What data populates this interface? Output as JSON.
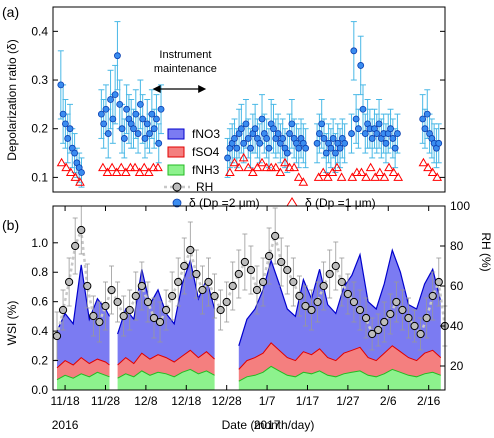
{
  "colors": {
    "fNO3": "#7b7bf2",
    "fNO3_edge": "#0000cc",
    "fSO4": "#f47f7f",
    "fSO4_edge": "#e00000",
    "fNH3": "#8df28d",
    "fNH3_edge": "#22bb22",
    "rh_marker": "#bdbdbd",
    "rh_line": "#c8c8c8",
    "d2": "#3a8cf0",
    "d2_err": "#49b8e6",
    "d1": "#ff0000"
  },
  "chart_data": [
    {
      "panel_label": "(a)",
      "type": "scatter",
      "ylabel": "Depolarization ratio (δ)",
      "ylim": [
        0.07,
        0.45
      ],
      "yticks": [
        0.1,
        0.2,
        0.3,
        0.4
      ],
      "ytick_labels": [
        "0.1",
        "0.2",
        "0.3",
        "0.4"
      ],
      "annotation": "Instrument\nmaintenance",
      "annotation_span": [
        12.5,
        19.5
      ],
      "series": [
        {
          "name": "δ (Dp =2 μm)",
          "marker": "circle",
          "x": [
            0.5,
            0.8,
            1.1,
            1.4,
            1.7,
            2.0,
            2.3,
            2.6,
            2.9,
            3.2,
            5.8,
            6.1,
            6.4,
            6.7,
            7.0,
            7.3,
            7.6,
            7.9,
            8.2,
            8.5,
            8.8,
            9.1,
            9.4,
            9.7,
            10.0,
            10.3,
            10.6,
            10.9,
            11.2,
            11.5,
            11.8,
            12.1,
            12.4,
            12.7,
            13.0,
            13.3,
            13.6,
            22.3,
            22.6,
            22.9,
            23.2,
            23.5,
            23.8,
            24.1,
            24.4,
            24.7,
            25.0,
            25.3,
            25.6,
            25.9,
            26.2,
            26.5,
            26.8,
            27.1,
            27.4,
            27.7,
            28.0,
            28.3,
            28.6,
            28.9,
            29.2,
            29.5,
            29.8,
            30.1,
            30.4,
            30.7,
            31.0,
            31.3,
            31.6,
            31.9,
            32.2,
            32.5,
            34.0,
            34.3,
            34.6,
            34.9,
            35.2,
            35.5,
            35.8,
            36.1,
            36.4,
            36.7,
            37.0,
            37.3,
            37.6,
            38.5,
            38.8,
            39.1,
            39.4,
            39.7,
            40.0,
            40.3,
            40.6,
            40.9,
            41.2,
            41.5,
            41.8,
            42.1,
            42.4,
            42.7,
            43.0,
            43.3,
            43.6,
            43.9,
            44.2,
            44.5,
            47.8,
            48.1,
            48.4,
            48.7,
            49.0,
            49.3,
            49.6,
            49.9
          ],
          "y": [
            0.29,
            0.23,
            0.21,
            0.18,
            0.2,
            0.16,
            0.15,
            0.13,
            0.12,
            0.11,
            0.23,
            0.21,
            0.24,
            0.19,
            0.26,
            0.22,
            0.27,
            0.35,
            0.25,
            0.2,
            0.18,
            0.24,
            0.22,
            0.21,
            0.2,
            0.23,
            0.19,
            0.25,
            0.22,
            0.18,
            0.21,
            0.19,
            0.23,
            0.2,
            0.22,
            0.17,
            0.24,
            0.14,
            0.16,
            0.17,
            0.18,
            0.16,
            0.19,
            0.2,
            0.17,
            0.21,
            0.18,
            0.16,
            0.19,
            0.2,
            0.18,
            0.17,
            0.22,
            0.19,
            0.18,
            0.16,
            0.21,
            0.2,
            0.18,
            0.19,
            0.17,
            0.18,
            0.16,
            0.15,
            0.19,
            0.21,
            0.18,
            0.17,
            0.16,
            0.18,
            0.17,
            0.16,
            0.17,
            0.19,
            0.21,
            0.18,
            0.15,
            0.17,
            0.16,
            0.18,
            0.15,
            0.17,
            0.16,
            0.18,
            0.17,
            0.19,
            0.36,
            0.22,
            0.2,
            0.33,
            0.24,
            0.19,
            0.21,
            0.2,
            0.18,
            0.2,
            0.19,
            0.21,
            0.18,
            0.19,
            0.17,
            0.19,
            0.2,
            0.18,
            0.16,
            0.19,
            0.22,
            0.2,
            0.23,
            0.19,
            0.18,
            0.17,
            0.16,
            0.17
          ],
          "yerr": [
            0.07,
            0.06,
            0.05,
            0.05,
            0.05,
            0.04,
            0.04,
            0.03,
            0.03,
            0.03,
            0.05,
            0.05,
            0.05,
            0.05,
            0.06,
            0.05,
            0.06,
            0.07,
            0.05,
            0.05,
            0.04,
            0.05,
            0.05,
            0.05,
            0.04,
            0.05,
            0.04,
            0.05,
            0.05,
            0.04,
            0.05,
            0.04,
            0.05,
            0.04,
            0.05,
            0.04,
            0.05,
            0.04,
            0.04,
            0.04,
            0.04,
            0.04,
            0.05,
            0.05,
            0.04,
            0.05,
            0.04,
            0.04,
            0.04,
            0.05,
            0.04,
            0.04,
            0.05,
            0.04,
            0.04,
            0.04,
            0.05,
            0.05,
            0.04,
            0.04,
            0.04,
            0.04,
            0.04,
            0.04,
            0.04,
            0.05,
            0.04,
            0.04,
            0.04,
            0.04,
            0.04,
            0.04,
            0.04,
            0.04,
            0.05,
            0.04,
            0.04,
            0.04,
            0.04,
            0.04,
            0.04,
            0.04,
            0.04,
            0.04,
            0.04,
            0.04,
            0.06,
            0.05,
            0.04,
            0.06,
            0.05,
            0.04,
            0.05,
            0.04,
            0.04,
            0.04,
            0.04,
            0.05,
            0.04,
            0.04,
            0.04,
            0.04,
            0.04,
            0.04,
            0.04,
            0.04,
            0.05,
            0.04,
            0.05,
            0.04,
            0.04,
            0.04,
            0.04,
            0.04
          ]
        },
        {
          "name": "δ (Dp =1 μm)",
          "marker": "triangle-open",
          "x": [
            0.6,
            1.2,
            1.8,
            2.4,
            3.0,
            6.0,
            6.6,
            7.2,
            7.8,
            8.4,
            9.0,
            9.6,
            10.2,
            10.8,
            11.4,
            12.0,
            12.6,
            13.2,
            22.6,
            23.2,
            23.8,
            24.4,
            25.0,
            25.6,
            26.2,
            26.8,
            27.4,
            28.0,
            28.6,
            29.2,
            29.8,
            30.4,
            31.0,
            31.6,
            32.2,
            34.2,
            34.8,
            35.4,
            36.0,
            36.6,
            37.2,
            38.6,
            39.2,
            39.8,
            40.4,
            41.0,
            41.6,
            42.2,
            42.8,
            43.4,
            44.0,
            44.6,
            47.9,
            48.5,
            49.1,
            49.7
          ],
          "y": [
            0.13,
            0.12,
            0.11,
            0.1,
            0.09,
            0.12,
            0.11,
            0.12,
            0.11,
            0.12,
            0.11,
            0.12,
            0.12,
            0.11,
            0.12,
            0.11,
            0.12,
            0.12,
            0.11,
            0.13,
            0.12,
            0.14,
            0.12,
            0.11,
            0.12,
            0.13,
            0.12,
            0.12,
            0.12,
            0.11,
            0.13,
            0.12,
            0.12,
            0.1,
            0.09,
            0.1,
            0.11,
            0.1,
            0.11,
            0.12,
            0.1,
            0.1,
            0.11,
            0.11,
            0.1,
            0.12,
            0.1,
            0.11,
            0.1,
            0.12,
            0.11,
            0.1,
            0.13,
            0.12,
            0.11,
            0.1
          ]
        }
      ],
      "legend": [
        "fNO3",
        "fSO4",
        "fNH3",
        "RH",
        "δ (Dp =2 μm)",
        "δ (Dp =1 μm)"
      ]
    },
    {
      "panel_label": "(b)",
      "type": "area",
      "xlabel": "Date (month/day)",
      "ylabel": "WSI (%)",
      "ylim": [
        0,
        1.25
      ],
      "yticks": [
        0.0,
        0.2,
        0.4,
        0.6,
        0.8,
        1.0
      ],
      "ytick_labels": [
        "0.0",
        "0.2",
        "0.4",
        "0.6",
        "0.8",
        "1.0"
      ],
      "y2label": "RH (%)",
      "y2lim": [
        8,
        100
      ],
      "y2ticks": [
        20,
        40,
        60,
        80,
        100
      ],
      "y2tick_labels": [
        "20",
        "40",
        "60",
        "80",
        "100"
      ],
      "x_start_day": "11/16",
      "xticks": [
        2,
        12,
        22,
        32,
        42,
        52,
        62,
        72,
        82,
        92
      ],
      "xtick_labels": [
        "11/18",
        "11/28",
        "12/8",
        "12/18",
        "12/28",
        "1/7",
        "1/17",
        "1/27",
        "2/6",
        "2/16"
      ],
      "year_labels": [
        {
          "x": 2,
          "text": "2016"
        },
        {
          "x": 52,
          "text": "2017"
        }
      ],
      "areas": {
        "segments": [
          {
            "x": [
              0,
              2,
              4,
              6,
              8,
              10,
              12,
              13
            ],
            "fNH3": [
              0.07,
              0.1,
              0.08,
              0.11,
              0.09,
              0.12,
              0.1,
              0.09
            ],
            "fSO4": [
              0.15,
              0.2,
              0.17,
              0.22,
              0.18,
              0.21,
              0.19,
              0.17
            ],
            "fNO3": [
              0.4,
              0.52,
              0.45,
              0.85,
              0.48,
              0.62,
              0.55,
              0.5
            ]
          },
          {
            "x": [
              15,
              17,
              19,
              21,
              23,
              25,
              27,
              29,
              31,
              33,
              35,
              37,
              39
            ],
            "fNH3": [
              0.08,
              0.11,
              0.09,
              0.13,
              0.1,
              0.12,
              0.11,
              0.09,
              0.12,
              0.14,
              0.11,
              0.13,
              0.1
            ],
            "fSO4": [
              0.17,
              0.22,
              0.18,
              0.25,
              0.21,
              0.24,
              0.22,
              0.19,
              0.23,
              0.27,
              0.22,
              0.26,
              0.21
            ],
            "fNO3": [
              0.38,
              0.55,
              0.48,
              0.82,
              0.58,
              0.68,
              0.52,
              0.45,
              0.72,
              0.88,
              0.62,
              0.75,
              0.55
            ]
          },
          {
            "x": [
              45,
              47,
              49,
              51,
              53,
              55,
              57,
              59,
              61,
              63,
              65,
              67,
              69,
              71,
              73,
              75,
              77,
              79,
              81,
              83,
              85,
              87,
              89,
              91,
              93,
              95
            ],
            "fNH3": [
              0.06,
              0.09,
              0.1,
              0.12,
              0.16,
              0.13,
              0.1,
              0.09,
              0.12,
              0.11,
              0.13,
              0.1,
              0.09,
              0.11,
              0.12,
              0.13,
              0.1,
              0.09,
              0.11,
              0.14,
              0.12,
              0.1,
              0.09,
              0.11,
              0.12,
              0.1
            ],
            "fSO4": [
              0.14,
              0.2,
              0.22,
              0.25,
              0.32,
              0.27,
              0.22,
              0.2,
              0.26,
              0.24,
              0.28,
              0.22,
              0.2,
              0.25,
              0.27,
              0.29,
              0.22,
              0.2,
              0.25,
              0.3,
              0.26,
              0.22,
              0.2,
              0.25,
              0.27,
              0.22
            ],
            "fNO3": [
              0.3,
              0.48,
              0.55,
              0.68,
              0.88,
              0.72,
              0.55,
              0.5,
              0.75,
              0.62,
              0.82,
              0.58,
              0.52,
              0.7,
              0.78,
              0.92,
              0.6,
              0.55,
              0.72,
              0.95,
              0.8,
              0.58,
              0.55,
              0.72,
              0.82,
              0.6
            ]
          }
        ]
      },
      "rh_series": {
        "name": "RH",
        "x": [
          0,
          1.5,
          3,
          4.5,
          6,
          7.5,
          9,
          10.5,
          12,
          13.5,
          15,
          16.5,
          18,
          19.5,
          21,
          22.5,
          24,
          25.5,
          27,
          28.5,
          30,
          31.5,
          33,
          34.5,
          36,
          37.5,
          39,
          40.5,
          42,
          43.5,
          45,
          46.5,
          48,
          49.5,
          51,
          52.5,
          54,
          55.5,
          57,
          58.5,
          60,
          61.5,
          63,
          64.5,
          66,
          67.5,
          69,
          70.5,
          72,
          73.5,
          75,
          76.5,
          78,
          79.5,
          81,
          82.5,
          84,
          85.5,
          87,
          88.5,
          90,
          91.5,
          93,
          94.5,
          96
        ],
        "y": [
          35,
          48,
          62,
          80,
          88,
          60,
          45,
          42,
          50,
          58,
          52,
          45,
          48,
          55,
          60,
          52,
          44,
          42,
          48,
          55,
          62,
          70,
          78,
          66,
          58,
          62,
          55,
          48,
          52,
          60,
          66,
          72,
          68,
          58,
          62,
          75,
          85,
          72,
          68,
          62,
          55,
          50,
          48,
          52,
          60,
          66,
          70,
          62,
          56,
          52,
          48,
          44,
          36,
          38,
          42,
          46,
          52,
          48,
          44,
          40,
          36,
          44,
          55,
          62,
          40
        ],
        "err": [
          12,
          10,
          12,
          14,
          12,
          11,
          10,
          10,
          12,
          12,
          10,
          10,
          10,
          12,
          12,
          10,
          10,
          10,
          10,
          12,
          12,
          14,
          14,
          12,
          12,
          12,
          11,
          10,
          10,
          12,
          12,
          14,
          12,
          12,
          12,
          14,
          14,
          12,
          12,
          12,
          10,
          10,
          10,
          10,
          12,
          12,
          12,
          12,
          10,
          10,
          10,
          10,
          8,
          8,
          10,
          10,
          10,
          10,
          10,
          8,
          8,
          10,
          12,
          12,
          10
        ]
      }
    }
  ]
}
